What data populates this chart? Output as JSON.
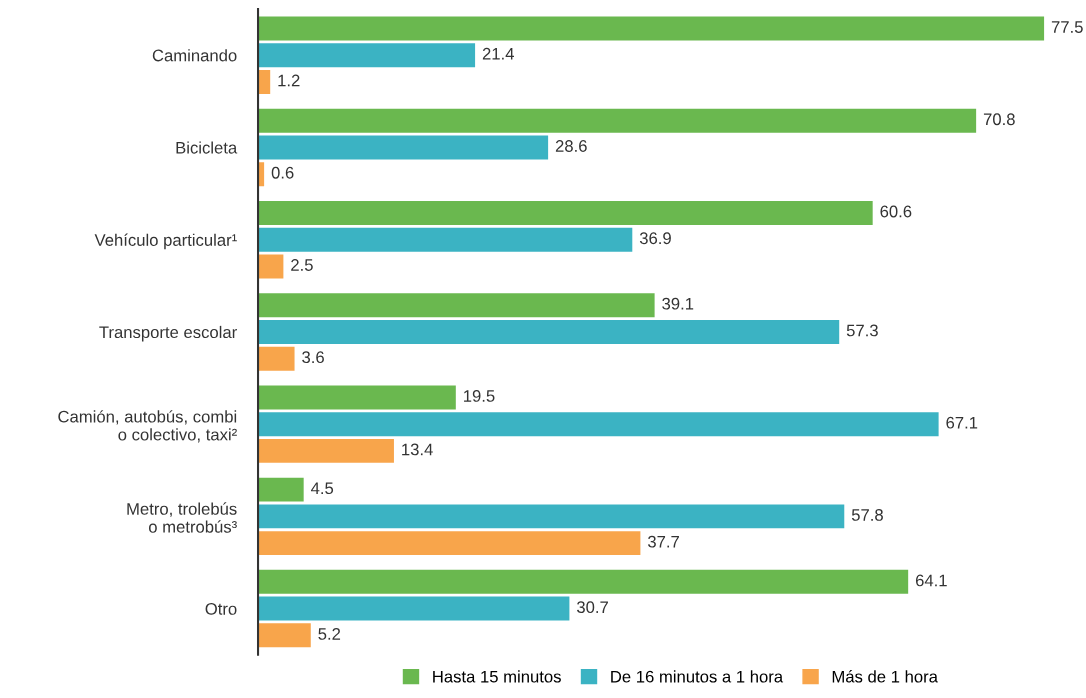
{
  "chart_data": {
    "type": "bar",
    "orientation": "horizontal",
    "data_labels": true,
    "legend": "bottom",
    "grid": false,
    "categories": [
      "Caminando",
      "Bicicleta",
      "Vehículo particular¹",
      "Transporte escolar",
      "Camión, autobús, combi\no colectivo, taxi²",
      "Metro, trolebús\no metrobús³",
      "Otro"
    ],
    "series": [
      {
        "name": "Hasta 15 minutos",
        "color": "#6ab84f",
        "values": [
          77.5,
          70.8,
          60.6,
          39.1,
          19.5,
          4.5,
          64.1
        ]
      },
      {
        "name": "De 16 minutos a 1 hora",
        "color": "#3bb3c3",
        "values": [
          21.4,
          28.6,
          36.9,
          57.3,
          67.1,
          57.8,
          30.7
        ]
      },
      {
        "name": "Más de 1 hora",
        "color": "#f8a54b",
        "values": [
          1.2,
          0.6,
          2.5,
          3.6,
          13.4,
          37.7,
          5.2
        ]
      }
    ]
  }
}
